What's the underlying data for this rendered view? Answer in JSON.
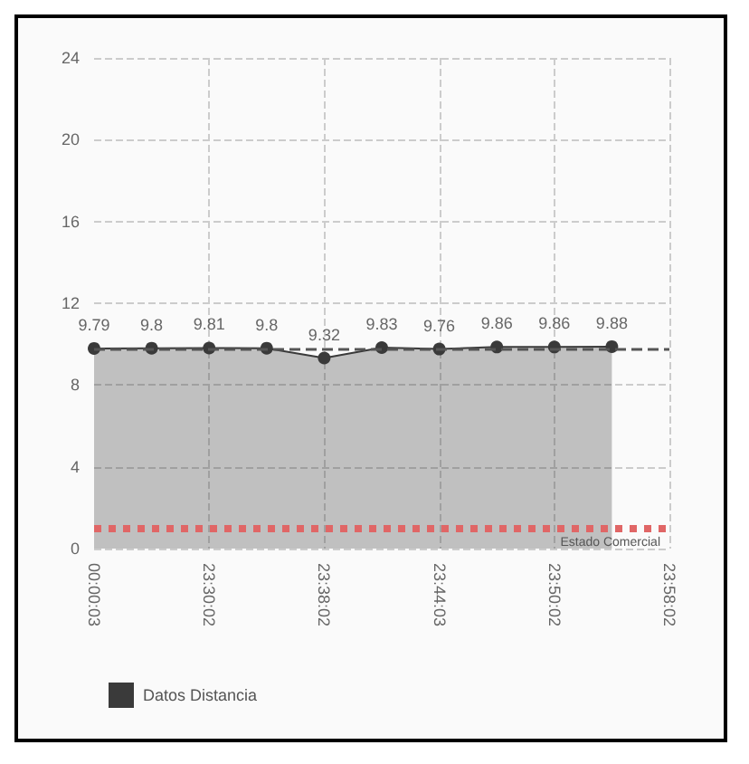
{
  "chart_data": {
    "type": "area",
    "categories": [
      "00:00:03",
      null,
      "23:30:02",
      null,
      "23:38:02",
      null,
      "23:44:03",
      null,
      "23:50:02",
      null,
      "23:58:02"
    ],
    "series": [
      {
        "name": "Datos Distancia",
        "color": "#3a3a3a",
        "values": [
          9.79,
          9.8,
          9.81,
          9.8,
          9.32,
          9.83,
          9.76,
          9.86,
          9.86,
          9.88,
          null
        ]
      }
    ],
    "ylim": [
      0,
      24
    ],
    "yticks": [
      0,
      4,
      8,
      12,
      16,
      20,
      24
    ],
    "grid": true,
    "legend": "bottom left",
    "marker": "circle",
    "data_labels": true,
    "ref_lines": [
      {
        "axis": "y",
        "value": 1,
        "label": "Estado Comercial",
        "color": "#e06666",
        "line_style": "dotted"
      },
      {
        "axis": "y",
        "value": 9.8,
        "label": null,
        "color": "#555555",
        "line_style": "dashed"
      }
    ]
  }
}
